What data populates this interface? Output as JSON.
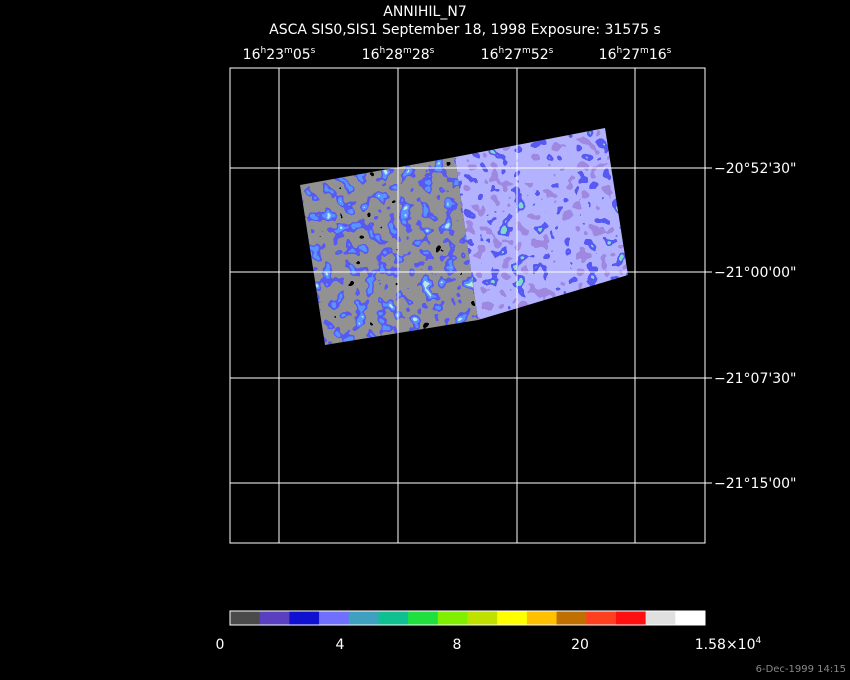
{
  "title": "ANNIHIL_N7",
  "subtitle": "ASCA SIS0,SIS1 September 18, 1998 Exposure: 31575 s",
  "ra_labels": [
    [
      "16",
      "h",
      "23",
      "m",
      "05",
      "s"
    ],
    [
      "16",
      "h",
      "28",
      "m",
      "28",
      "s"
    ],
    [
      "16",
      "h",
      "27",
      "m",
      "52",
      "s"
    ],
    [
      "16",
      "h",
      "27",
      "m",
      "16",
      "s"
    ]
  ],
  "dec_labels": [
    "−20°52'30\"",
    "−21°00'00\"",
    "−21°07'30\"",
    "−21°15'00\""
  ],
  "colorbar": {
    "colors": [
      "#4a4a4a",
      "#5a3fc0",
      "#1010d0",
      "#7070ff",
      "#3fa0c0",
      "#10c090",
      "#20e040",
      "#80f000",
      "#c0e000",
      "#ffff00",
      "#ffc000",
      "#c07000",
      "#ff4020",
      "#ff1010",
      "#e0e0e0",
      "#ffffff"
    ],
    "labels": [
      [
        "0"
      ],
      [
        "4"
      ],
      [
        "8"
      ],
      [
        "20"
      ],
      [
        "1.58×10",
        "4"
      ]
    ]
  },
  "timestamp": "6-Dec-1999 14:15"
}
